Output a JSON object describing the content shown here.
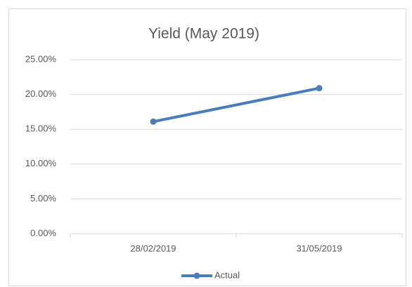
{
  "chart_data": {
    "type": "line",
    "title": "Yield (May 2019)",
    "categories": [
      "28/02/2019",
      "31/05/2019"
    ],
    "series": [
      {
        "name": "Actual",
        "color": "#4a7ebb",
        "values": [
          16.1,
          20.9
        ]
      }
    ],
    "ylim": [
      0,
      25
    ],
    "yticks": [
      {
        "value": 0,
        "label": "0.00%"
      },
      {
        "value": 5,
        "label": "5.00%"
      },
      {
        "value": 10,
        "label": "10.00%"
      },
      {
        "value": 15,
        "label": "15.00%"
      },
      {
        "value": 20,
        "label": "20.00%"
      },
      {
        "value": 25,
        "label": "25.00%"
      }
    ],
    "grid": true,
    "legend": "bottom"
  }
}
